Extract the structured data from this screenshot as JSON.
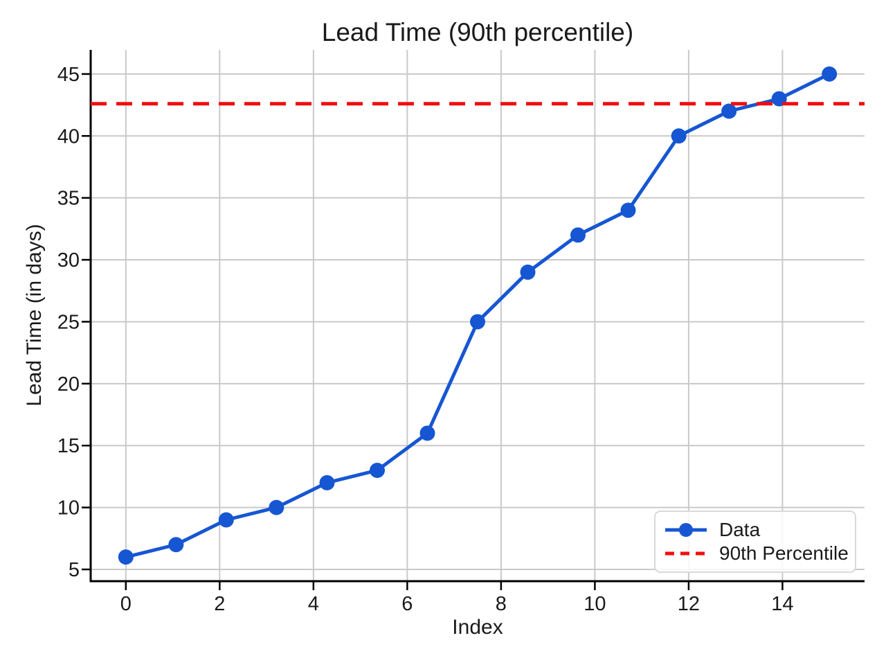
{
  "title": "Lead Time (90th percentile)",
  "axes": {
    "xlabel": "Index",
    "ylabel": "Lead Time (in days)"
  },
  "legend": {
    "items": [
      {
        "label": "Data",
        "swatch": "line-with-marker",
        "color": "#1656d2"
      },
      {
        "label": "90th Percentile",
        "swatch": "dashed-line",
        "color": "#f20d0d"
      }
    ]
  },
  "chart_data": {
    "type": "line",
    "title": "Lead Time (90th percentile)",
    "xlabel": "Index",
    "ylabel": "Lead Time (in days)",
    "x": [
      0,
      1.07,
      2.14,
      3.21,
      4.29,
      5.36,
      6.43,
      7.5,
      8.57,
      9.64,
      10.71,
      11.79,
      12.86,
      13.93,
      15
    ],
    "series": [
      {
        "name": "Data",
        "values": [
          6,
          7,
          9,
          10,
          12,
          13,
          16,
          25,
          29,
          32,
          34,
          40,
          42,
          43,
          45
        ],
        "color": "#1656d2",
        "marker": "circle",
        "line_style": "solid"
      }
    ],
    "reference_lines": [
      {
        "name": "90th Percentile",
        "value": 42.6,
        "color": "#f20d0d",
        "line_style": "dashed",
        "orientation": "horizontal"
      }
    ],
    "xticks": [
      0,
      2,
      4,
      6,
      8,
      10,
      12,
      14
    ],
    "yticks": [
      5,
      10,
      15,
      20,
      25,
      30,
      35,
      40,
      45
    ],
    "xlim": [
      -0.75,
      15.75
    ],
    "ylim": [
      4.05,
      46.95
    ],
    "grid": true,
    "legend_position": "lower right"
  },
  "colors": {
    "data_line": "#1656d2",
    "percentile_line": "#f20d0d",
    "grid": "#c9c9c9",
    "spine": "#000000",
    "text": "#1a1a1a",
    "legend_border": "#d9d9d9",
    "background": "#ffffff"
  }
}
